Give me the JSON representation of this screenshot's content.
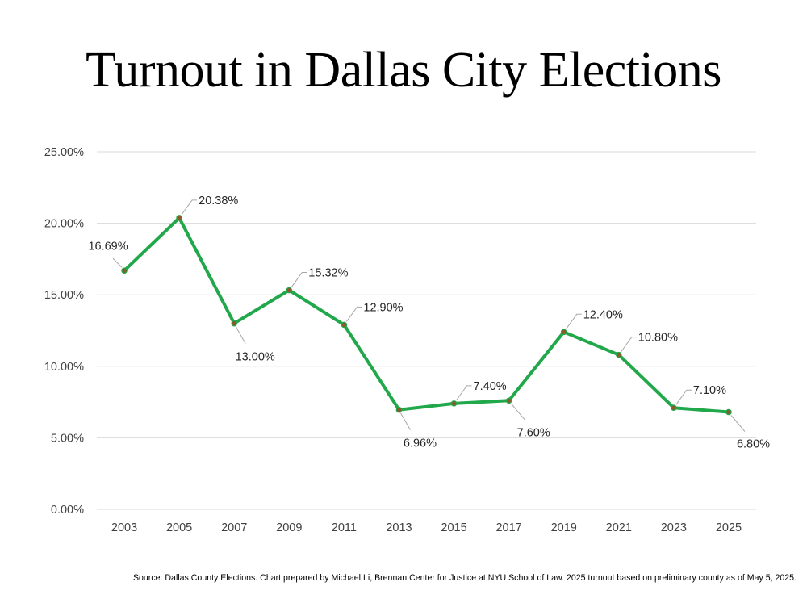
{
  "chart_data": {
    "type": "line",
    "title": "Turnout in Dallas City Elections",
    "xlabel": "",
    "ylabel": "",
    "categories": [
      "2003",
      "2005",
      "2007",
      "2009",
      "2011",
      "2013",
      "2015",
      "2017",
      "2019",
      "2021",
      "2023",
      "2025"
    ],
    "series": [
      {
        "name": "Turnout",
        "values": [
          16.69,
          20.38,
          13.0,
          15.32,
          12.9,
          6.96,
          7.4,
          7.6,
          12.4,
          10.8,
          7.1,
          6.8
        ],
        "data_labels": [
          "16.69%",
          "20.38%",
          "13.00%",
          "15.32%",
          "12.90%",
          "6.96%",
          "7.40%",
          "7.60%",
          "12.40%",
          "10.80%",
          "7.10%",
          "6.80%"
        ],
        "label_placement": [
          "above-left",
          "above-right",
          "below",
          "above-right",
          "above-right",
          "below",
          "above-right",
          "below-right",
          "above-right",
          "above-right",
          "above-right",
          "below-right"
        ]
      }
    ],
    "y_ticks": [
      0,
      5,
      10,
      15,
      20,
      25
    ],
    "y_tick_labels": [
      "0.00%",
      "5.00%",
      "10.00%",
      "15.00%",
      "20.00%",
      "25.00%"
    ],
    "ylim": [
      0,
      25
    ],
    "grid": true,
    "legend": "none",
    "colors": {
      "line": "#21a84a",
      "marker": "#8a5a2b",
      "grid": "#d9d9d9",
      "leader": "#a6a6a6"
    }
  },
  "source_note": "Source: Dallas County Elections. Chart prepared by Michael Li, Brennan Center for Justice at NYU School of Law. 2025 turnout based on preliminary county as of May 5, 2025."
}
